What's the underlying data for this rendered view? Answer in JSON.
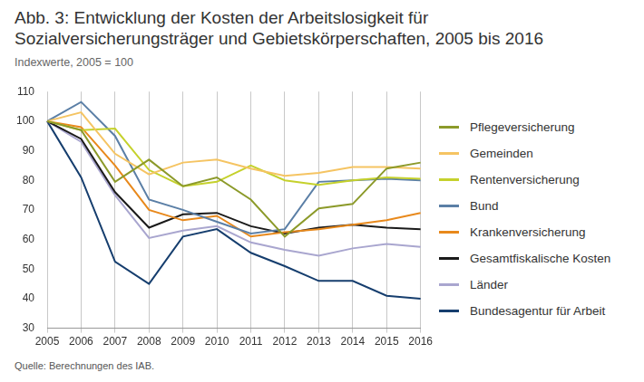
{
  "chart_data": {
    "type": "line",
    "title": "Abb. 3: Entwicklung der Kosten der Arbeitslosigkeit für Sozialversicherungsträger und Gebietskörperschaften, 2005 bis 2016",
    "subtitle": "Indexwerte, 2005 = 100",
    "source": "Quelle: Berechnungen des IAB.",
    "categories": [
      "2005",
      "2006",
      "2007",
      "2008",
      "2009",
      "2010",
      "2011",
      "2012",
      "2013",
      "2014",
      "2015",
      "2016"
    ],
    "ylim": [
      30,
      110
    ],
    "yticks": [
      30,
      40,
      50,
      60,
      70,
      80,
      90,
      100,
      110
    ],
    "grid": true,
    "legend": "right",
    "series": [
      {
        "name": "Pflegeversicherung",
        "color": "#8c9a2a",
        "values": [
          100,
          97,
          79.5,
          87,
          78,
          81,
          73.5,
          61,
          70.5,
          72,
          84,
          86
        ]
      },
      {
        "name": "Gemeinden",
        "color": "#f5c462",
        "values": [
          100,
          103,
          89,
          82,
          86,
          87,
          84,
          81.5,
          82.5,
          84.5,
          84.5,
          84
        ]
      },
      {
        "name": "Rentenversicherung",
        "color": "#c5d12c",
        "values": [
          100,
          97,
          97.5,
          83.5,
          78,
          79.5,
          85,
          80,
          78.5,
          80,
          81,
          80.5
        ]
      },
      {
        "name": "Bund",
        "color": "#5b7fa6",
        "values": [
          100,
          106.5,
          95,
          73.5,
          70,
          66,
          62,
          63.5,
          79.5,
          80,
          80.5,
          80
        ]
      },
      {
        "name": "Krankenversicherung",
        "color": "#e8891c",
        "values": [
          100,
          98,
          85,
          70,
          66.5,
          68,
          61,
          62.5,
          63.5,
          65,
          66.5,
          69
        ]
      },
      {
        "name": "Gesamtfiskalische Kosten",
        "color": "#1a1a1a",
        "values": [
          100,
          94,
          76,
          64,
          68.5,
          69,
          64.5,
          62,
          64,
          65,
          64,
          63.5
        ]
      },
      {
        "name": "Länder",
        "color": "#a9a6cf",
        "values": [
          100,
          93,
          75,
          60.5,
          63,
          64.5,
          59,
          56.5,
          54.5,
          57,
          58.5,
          57.5
        ]
      },
      {
        "name": "Bundesagentur für Arbeit",
        "color": "#163e6e",
        "values": [
          100,
          81,
          52.5,
          45,
          61,
          63.5,
          55.5,
          51,
          46,
          46,
          41,
          40
        ]
      }
    ]
  }
}
